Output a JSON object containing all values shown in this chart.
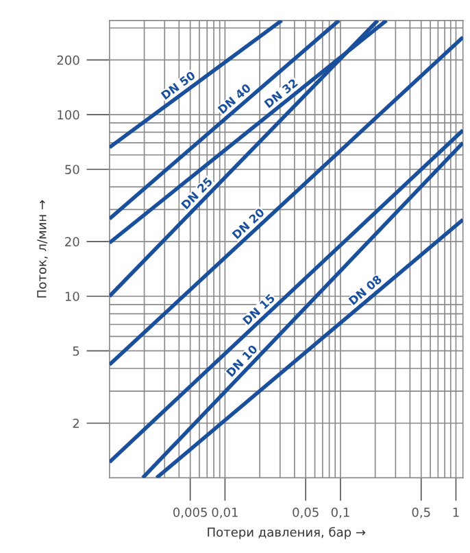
{
  "chart_data": {
    "type": "line",
    "xlabel": "Потери давления, бар →",
    "ylabel": "Поток, л/мин →",
    "log": "xy",
    "grid": true,
    "legend": false,
    "marker": "none",
    "line_style": "solid",
    "xlim": [
      0.001,
      1.15
    ],
    "ylim": [
      1,
      330
    ],
    "xticks": [
      {
        "value": 0.005,
        "label": "0,005"
      },
      {
        "value": 0.01,
        "label": "0,01"
      },
      {
        "value": 0.05,
        "label": "0,05"
      },
      {
        "value": 0.1,
        "label": "0,1"
      },
      {
        "value": 0.5,
        "label": "0,5"
      },
      1
    ],
    "yticks": [
      2,
      5,
      10,
      20,
      50,
      100,
      200
    ],
    "series": [
      {
        "name": "DN 50",
        "color": "#1a4f9c",
        "x": [
          0.001,
          0.031
        ],
        "values": [
          66,
          330
        ]
      },
      {
        "name": "DN 40",
        "color": "#1a4f9c",
        "x": [
          0.001,
          0.097
        ],
        "values": [
          26.7,
          330
        ]
      },
      {
        "name": "DN 32",
        "color": "#1a4f9c",
        "x": [
          0.001,
          0.25
        ],
        "values": [
          19.7,
          330
        ]
      },
      {
        "name": "DN 25",
        "color": "#1a4f9c",
        "x": [
          0.001,
          0.21
        ],
        "values": [
          10,
          330
        ]
      },
      {
        "name": "DN 20",
        "color": "#1a4f9c",
        "x": [
          0.001,
          1.15
        ],
        "values": [
          4.2,
          267
        ]
      },
      {
        "name": "DN 15",
        "color": "#1a4f9c",
        "x": [
          0.001,
          1.15
        ],
        "values": [
          1.22,
          82
        ]
      },
      {
        "name": "DN 10",
        "color": "#1a4f9c",
        "x": [
          0.00194,
          1.15
        ],
        "values": [
          1,
          70
        ]
      },
      {
        "name": "DN 08",
        "color": "#1a4f9c",
        "x": [
          0.00256,
          1.15
        ],
        "values": [
          1,
          26.4
        ]
      }
    ]
  }
}
